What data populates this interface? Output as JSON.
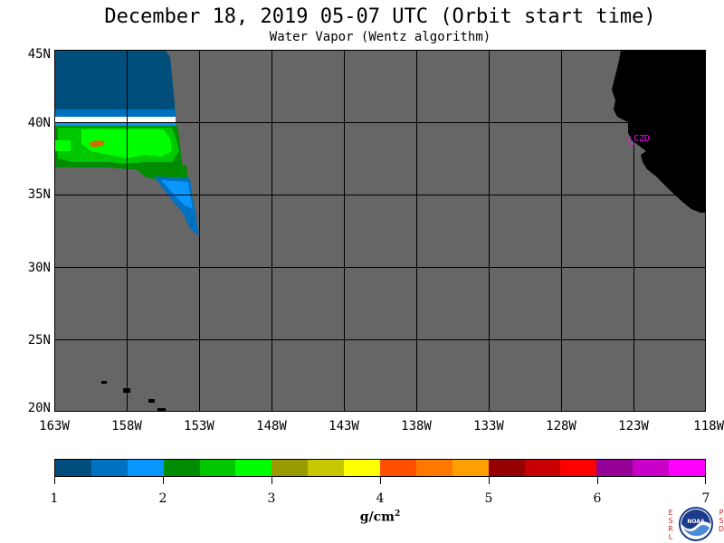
{
  "title": "December 18, 2019  05-07 UTC  (Orbit start time)",
  "subtitle": "Water Vapor (Wentz algorithm)",
  "lat_labels": [
    "45N",
    "40N",
    "35N",
    "30N",
    "25N",
    "20N"
  ],
  "lon_labels": [
    "163W",
    "158W",
    "153W",
    "148W",
    "143W",
    "138W",
    "133W",
    "128W",
    "123W",
    "118W"
  ],
  "station_label": "CZD",
  "colorbar": {
    "colors": [
      "#004e7c",
      "#0070c0",
      "#0a96ff",
      "#008c00",
      "#00c800",
      "#00ff00",
      "#999900",
      "#c8c800",
      "#ffff00",
      "#ff5000",
      "#ff7800",
      "#ffa000",
      "#960000",
      "#c80000",
      "#ff0000",
      "#960096",
      "#c800c8",
      "#ff00ff"
    ],
    "tick_labels": [
      "1",
      "2",
      "3",
      "4",
      "5",
      "6",
      "7"
    ]
  },
  "units": "g/cm",
  "units_exponent": "2",
  "logo": {
    "left_letters": "ESRL",
    "right_letters": "PSD",
    "name": "noaa-logo"
  },
  "map_colors": {
    "ocean_nodata": "#666666",
    "land": "#000000",
    "grid": "#000000",
    "station": "#ff00ff"
  }
}
